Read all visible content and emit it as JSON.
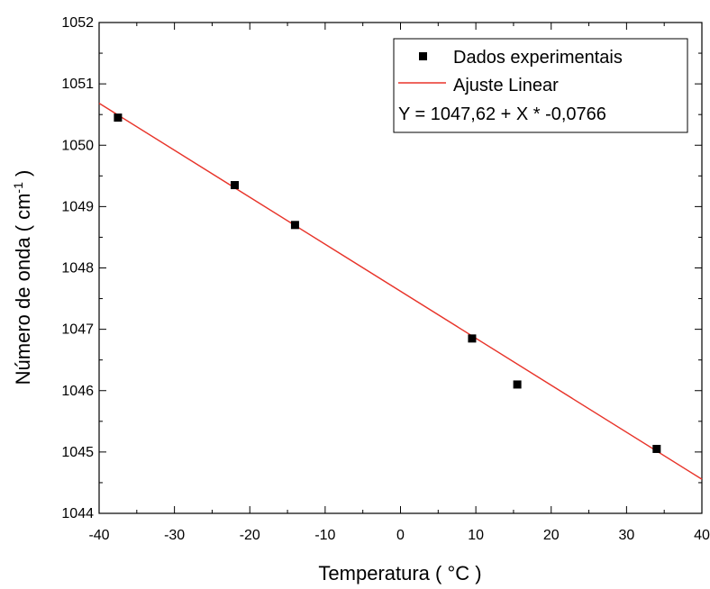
{
  "chart_data": {
    "type": "scatter",
    "xlabel": "Temperatura ( °C )",
    "ylabel": "Número de onda ( cm-1 )",
    "ylabel_main": "Número de onda ( cm",
    "ylabel_sup": "-1",
    "ylabel_end": " )",
    "xlim": [
      -40,
      40
    ],
    "ylim": [
      1044,
      1052
    ],
    "x_ticks": [
      -40,
      -30,
      -20,
      -10,
      0,
      10,
      20,
      30,
      40
    ],
    "y_ticks": [
      1044,
      1045,
      1046,
      1047,
      1048,
      1049,
      1050,
      1051,
      1052
    ],
    "series": [
      {
        "name": "Dados experimentais",
        "kind": "points",
        "color": "#000000",
        "x": [
          -37.5,
          -22,
          -14,
          9.5,
          15.5,
          34
        ],
        "y": [
          1050.45,
          1049.35,
          1048.7,
          1046.85,
          1046.1,
          1045.05
        ]
      },
      {
        "name": "Ajuste Linear",
        "kind": "line",
        "color": "#e8342a",
        "intercept": 1047.62,
        "slope": -0.0766
      }
    ],
    "legend": {
      "position": "top-right",
      "equation": "Y = 1047,62 + X * -0,0766"
    },
    "grid": false
  }
}
